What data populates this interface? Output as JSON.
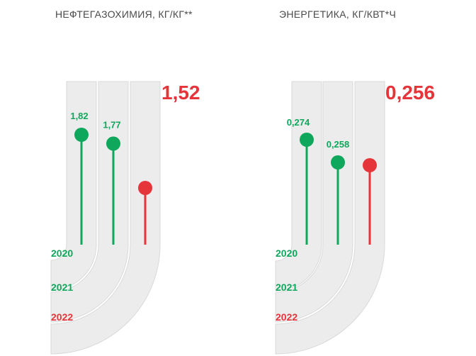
{
  "colors": {
    "green": "#0fa75c",
    "red": "#e5353b",
    "track": "#ececec",
    "track_edge": "#d9d9d9",
    "title": "#4a4a4a"
  },
  "chart_data": [
    {
      "type": "bar",
      "title": "НЕФТЕГАЗОХИМИЯ, КГ/КГ**",
      "categories": [
        "2020",
        "2021",
        "2022"
      ],
      "values": [
        1.82,
        1.77,
        1.52
      ],
      "value_labels": [
        "1,82",
        "1,77",
        "1,52"
      ],
      "category_colors": [
        "green",
        "green",
        "red"
      ],
      "highlight_last": true,
      "ylim": [
        1.2,
        2.0
      ],
      "grid": false,
      "legend": "none"
    },
    {
      "type": "bar",
      "title": "ЭНЕРГЕТИКА, КГ/КВТ*Ч",
      "categories": [
        "2020",
        "2021",
        "2022"
      ],
      "values": [
        0.274,
        0.258,
        0.256
      ],
      "value_labels": [
        "0,274",
        "0,258",
        "0,256"
      ],
      "category_colors": [
        "green",
        "green",
        "red"
      ],
      "highlight_last": true,
      "ylim": [
        0.2,
        0.3
      ],
      "grid": false,
      "legend": "none"
    }
  ]
}
